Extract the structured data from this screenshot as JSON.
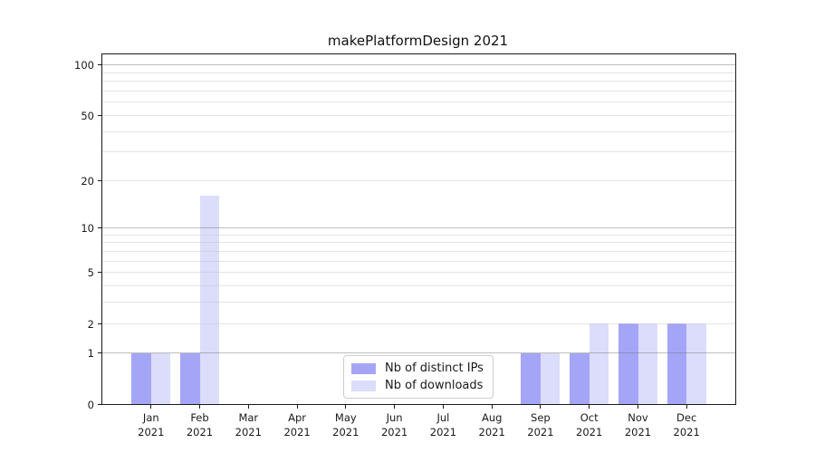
{
  "title": "makePlatformDesign 2021",
  "legend": {
    "items": [
      {
        "label": "Nb of distinct IPs",
        "color": "#a5a5f7"
      },
      {
        "label": "Nb of downloads",
        "color": "#dcdcfb"
      }
    ],
    "position": "lower center"
  },
  "chart_data": {
    "type": "bar",
    "title": "makePlatformDesign 2021",
    "categories": [
      "Jan 2021",
      "Feb 2021",
      "Mar 2021",
      "Apr 2021",
      "May 2021",
      "Jun 2021",
      "Jul 2021",
      "Aug 2021",
      "Sep 2021",
      "Oct 2021",
      "Nov 2021",
      "Dec 2021"
    ],
    "month_labels": [
      "Jan",
      "Feb",
      "Mar",
      "Apr",
      "May",
      "Jun",
      "Jul",
      "Aug",
      "Sep",
      "Oct",
      "Nov",
      "Dec"
    ],
    "year_label": "2021",
    "series": [
      {
        "name": "Nb of distinct IPs",
        "color": "#a5a5f7",
        "values": [
          1,
          1,
          0,
          0,
          0,
          0,
          0,
          0,
          1,
          1,
          2,
          2
        ]
      },
      {
        "name": "Nb of downloads",
        "color": "#dcdcfb",
        "values": [
          1,
          16,
          0,
          0,
          0,
          0,
          0,
          0,
          1,
          2,
          2,
          2
        ]
      }
    ],
    "xlabel": "",
    "ylabel": "",
    "yscale": "log1p",
    "ylim": [
      0,
      116
    ],
    "ytick_labels": [
      "0",
      "1",
      "2",
      "5",
      "10",
      "20",
      "50",
      "100"
    ],
    "yticks": [
      0,
      1,
      2,
      5,
      10,
      20,
      50,
      100
    ],
    "gridlines_major": [
      1,
      10,
      100
    ],
    "gridlines_minor": [
      2,
      3,
      4,
      5,
      6,
      7,
      8,
      9,
      20,
      30,
      40,
      50,
      60,
      70,
      80,
      90
    ],
    "grid": true,
    "legend_position": "lower center"
  }
}
